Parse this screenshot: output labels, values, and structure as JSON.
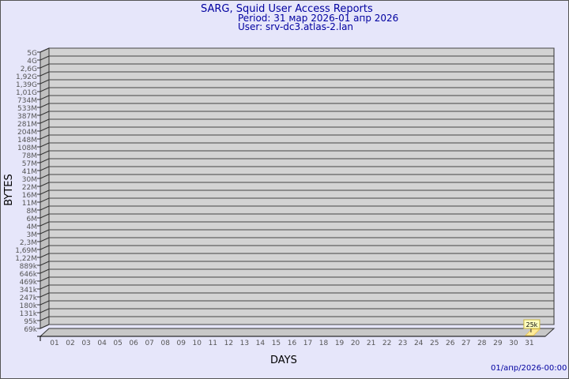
{
  "chart_data": {
    "type": "bar",
    "title": "SARG, Squid User Access Reports",
    "period": "Period: 31 мар 2026-01 апр 2026",
    "user": "User: srv-dc3.atlas-2.lan",
    "xlabel": "DAYS",
    "ylabel": "BYTES",
    "y_scale": "log",
    "y_tick_labels": [
      "5G",
      "4G",
      "2,6G",
      "1,92G",
      "1,39G",
      "1,01G",
      "734M",
      "533M",
      "387M",
      "281M",
      "204M",
      "148M",
      "108M",
      "78M",
      "57M",
      "41M",
      "30M",
      "22M",
      "16M",
      "11M",
      "8M",
      "6M",
      "4M",
      "3M",
      "2,3M",
      "1,69M",
      "1,22M",
      "889k",
      "646k",
      "469k",
      "341k",
      "247k",
      "180k",
      "131k",
      "95k",
      "69k"
    ],
    "categories": [
      "01",
      "02",
      "03",
      "04",
      "05",
      "06",
      "07",
      "08",
      "09",
      "10",
      "11",
      "12",
      "13",
      "14",
      "15",
      "16",
      "17",
      "18",
      "19",
      "20",
      "21",
      "22",
      "23",
      "24",
      "25",
      "26",
      "27",
      "28",
      "29",
      "30",
      "31"
    ],
    "bars": [
      {
        "day": "31",
        "value": 25000,
        "label": "25k"
      }
    ],
    "grid": true,
    "colors": {
      "background": "#e6e6fa",
      "plot": "#d3d3d3",
      "bar": "#ffeb99",
      "text": "#0000a0",
      "axis_text": "#555555"
    }
  },
  "footer": {
    "timestamp": "01/апр/2026-00:00"
  }
}
